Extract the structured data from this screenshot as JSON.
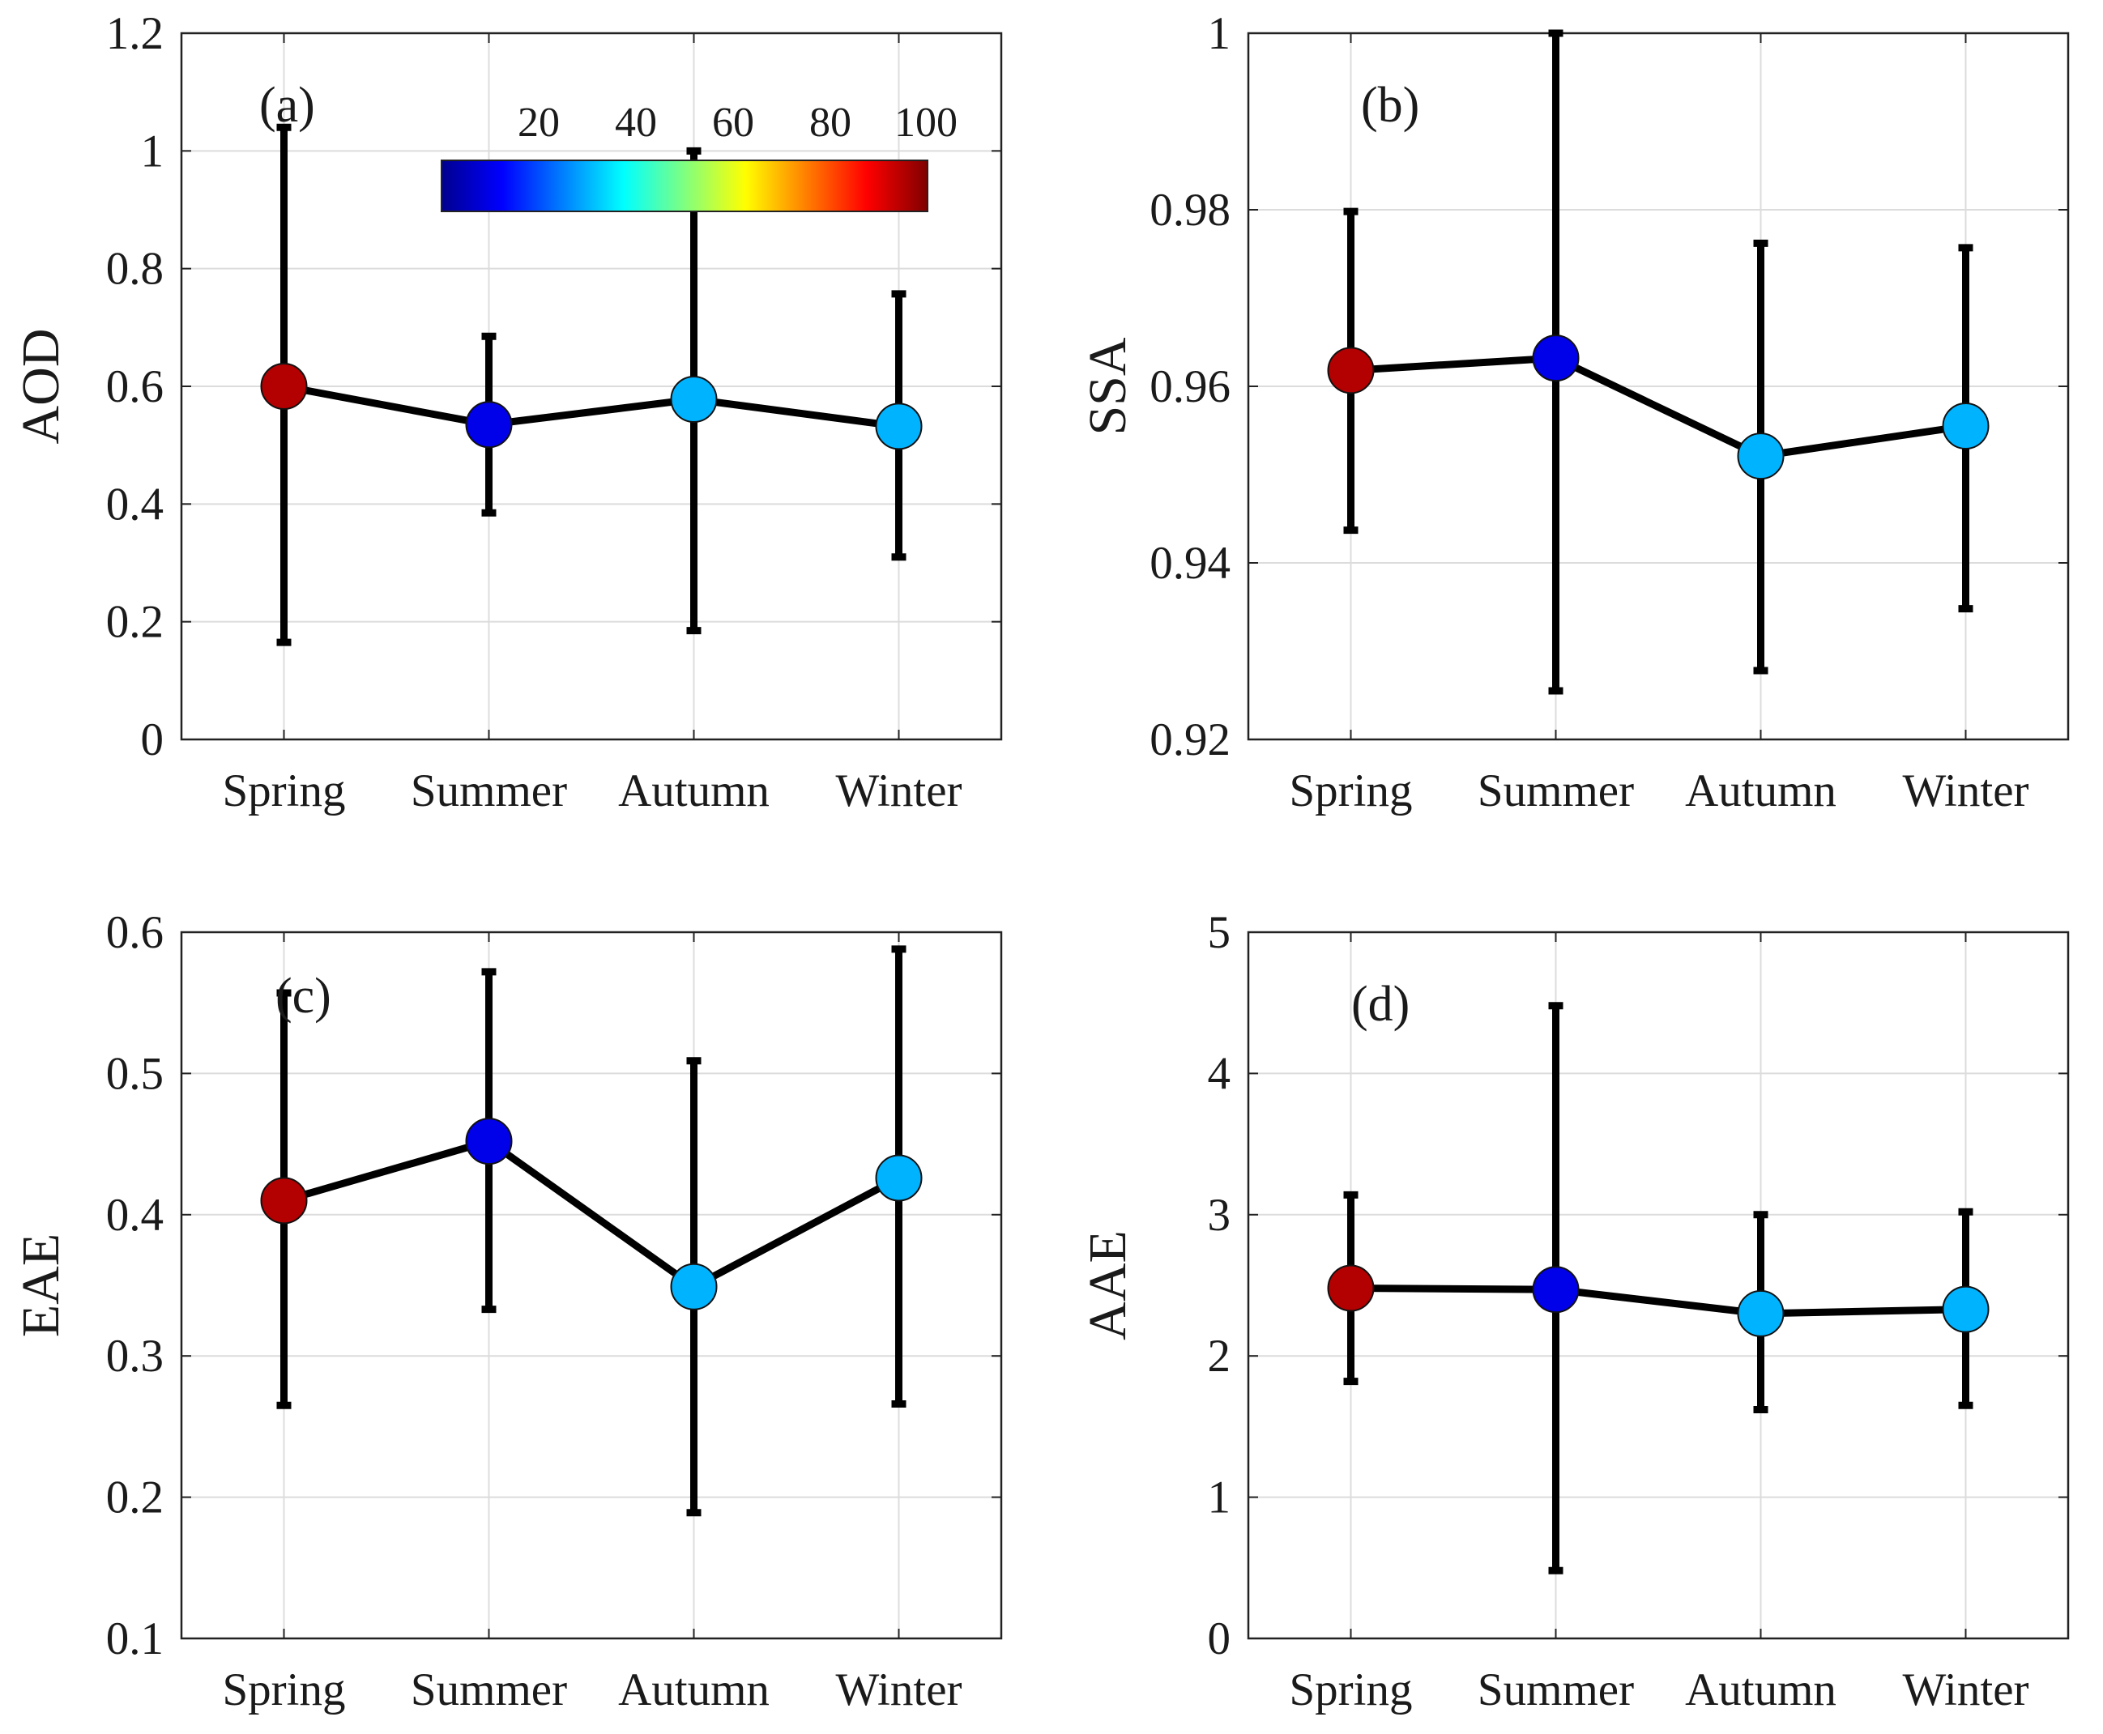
{
  "chart_data": [
    {
      "type": "line",
      "panel_label": "(a)",
      "ylabel": "AOD",
      "categories": [
        "Spring",
        "Summer",
        "Autumn",
        "Winter"
      ],
      "values": [
        0.6,
        0.535,
        0.578,
        0.532
      ],
      "error_lower": [
        0.165,
        0.385,
        0.185,
        0.31
      ],
      "error_upper": [
        1.04,
        0.685,
        1.0,
        0.757
      ],
      "marker_values": [
        95,
        10,
        30,
        30
      ],
      "ylim": [
        0,
        1.2
      ],
      "yticks": [
        0,
        0.2,
        0.4,
        0.6,
        0.8,
        1.0,
        1.2
      ],
      "ytick_labels": [
        "0",
        "0.2",
        "0.4",
        "0.6",
        "0.8",
        "1",
        "1.2"
      ],
      "grid": true
    },
    {
      "type": "line",
      "panel_label": "(b)",
      "ylabel": "SSA",
      "categories": [
        "Spring",
        "Summer",
        "Autumn",
        "Winter"
      ],
      "values": [
        0.9618,
        0.9632,
        0.9521,
        0.9555
      ],
      "error_lower": [
        0.9437,
        0.9255,
        0.9278,
        0.9348
      ],
      "error_upper": [
        0.9798,
        1.0,
        0.9762,
        0.9757
      ],
      "marker_values": [
        95,
        10,
        30,
        30
      ],
      "ylim": [
        0.92,
        1.0
      ],
      "yticks": [
        0.92,
        0.94,
        0.96,
        0.98,
        1.0
      ],
      "ytick_labels": [
        "0.92",
        "0.94",
        "0.96",
        "0.98",
        "1"
      ],
      "grid": true
    },
    {
      "type": "line",
      "panel_label": "(c)",
      "ylabel": "EAE",
      "categories": [
        "Spring",
        "Summer",
        "Autumn",
        "Winter"
      ],
      "values": [
        0.41,
        0.452,
        0.349,
        0.426
      ],
      "error_lower": [
        0.265,
        0.333,
        0.189,
        0.266
      ],
      "error_upper": [
        0.557,
        0.572,
        0.509,
        0.588
      ],
      "marker_values": [
        95,
        10,
        30,
        30
      ],
      "ylim": [
        0.1,
        0.6
      ],
      "yticks": [
        0.1,
        0.2,
        0.3,
        0.4,
        0.5,
        0.6
      ],
      "ytick_labels": [
        "0.1",
        "0.2",
        "0.3",
        "0.4",
        "0.5",
        "0.6"
      ],
      "grid": true
    },
    {
      "type": "line",
      "panel_label": "(d)",
      "ylabel": "AAE",
      "categories": [
        "Spring",
        "Summer",
        "Autumn",
        "Winter"
      ],
      "values": [
        2.48,
        2.47,
        2.3,
        2.33
      ],
      "error_lower": [
        1.82,
        0.48,
        1.62,
        1.65
      ],
      "error_upper": [
        3.14,
        4.48,
        3.0,
        3.02
      ],
      "marker_values": [
        95,
        10,
        30,
        30
      ],
      "ylim": [
        0,
        5
      ],
      "yticks": [
        0,
        1,
        2,
        3,
        4,
        5
      ],
      "ytick_labels": [
        "0",
        "1",
        "2",
        "3",
        "4",
        "5"
      ],
      "grid": true
    }
  ],
  "colorbar": {
    "colormap": "jet",
    "range": [
      0,
      100
    ],
    "tick_values": [
      20,
      40,
      60,
      80,
      100
    ],
    "tick_labels": [
      "20",
      "40",
      "60",
      "80",
      "100"
    ]
  },
  "style": {
    "line_color": "#000000",
    "grid_color": "#dcdcdc",
    "jet_stops": [
      "#00008f",
      "#0000ff",
      "#00ffff",
      "#ffff00",
      "#ff0000",
      "#800000"
    ]
  }
}
